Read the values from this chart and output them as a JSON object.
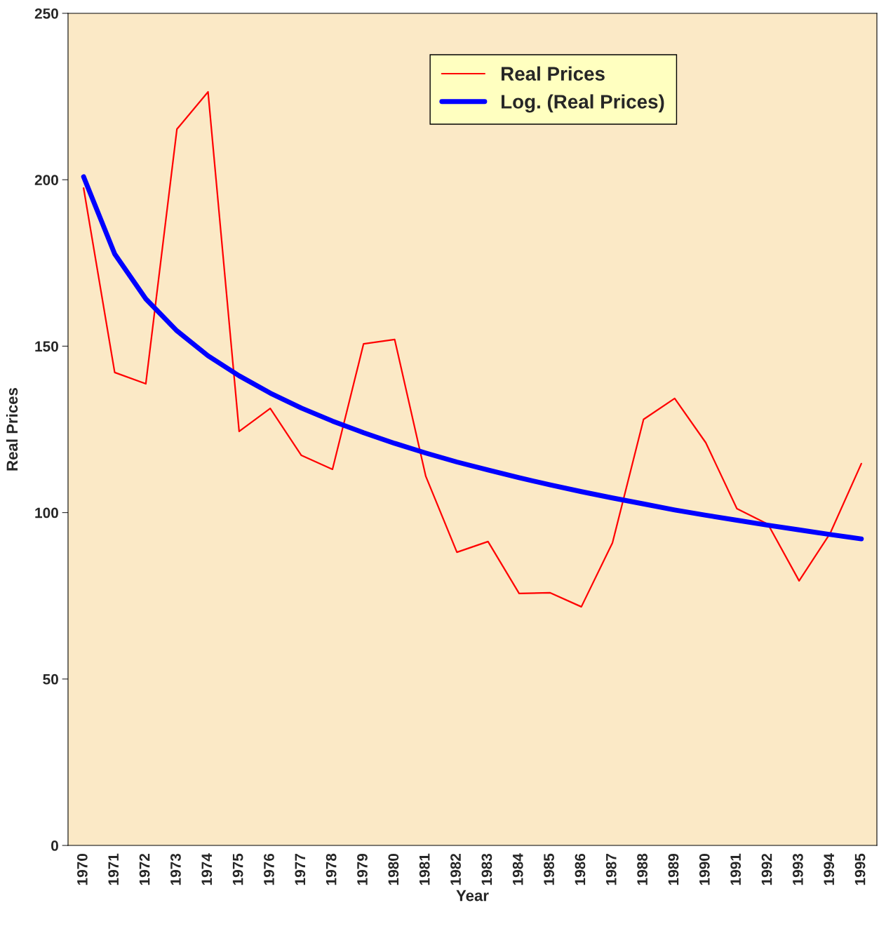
{
  "chart_data": {
    "type": "line",
    "xlabel": "Year",
    "ylabel": "Real Prices",
    "categories": [
      "1970",
      "1971",
      "1972",
      "1973",
      "1974",
      "1975",
      "1976",
      "1977",
      "1978",
      "1979",
      "1980",
      "1981",
      "1982",
      "1983",
      "1984",
      "1985",
      "1986",
      "1987",
      "1988",
      "1989",
      "1990",
      "1991",
      "1992",
      "1993",
      "1994",
      "1995"
    ],
    "series": [
      {
        "name": "Real Prices",
        "color": "#ff0000",
        "values": [
          197.5,
          142.1,
          138.7,
          215.2,
          226.4,
          124.4,
          131.3,
          117.2,
          113.0,
          150.7,
          152.0,
          110.9,
          88.1,
          91.3,
          75.7,
          75.9,
          71.7,
          90.9,
          128.0,
          134.3,
          121.0,
          101.2,
          96.5,
          79.5,
          93.8,
          114.7
        ]
      },
      {
        "name": "Log. (Real Prices)",
        "color": "#0000ff",
        "type": "line",
        "values": [
          200.9,
          177.7,
          164.2,
          154.6,
          147.1,
          141.1,
          135.9,
          131.4,
          127.5,
          124.0,
          120.8,
          117.9,
          115.2,
          112.8,
          110.5,
          108.3,
          106.3,
          104.4,
          102.6,
          100.8,
          99.2,
          97.7,
          96.2,
          94.8,
          93.4,
          92.1
        ]
      }
    ],
    "ylim": [
      0,
      250
    ],
    "yticks": [
      0,
      50,
      100,
      150,
      200,
      250
    ],
    "grid": false,
    "legend": "top",
    "marker": "none",
    "line_style": "solid"
  }
}
